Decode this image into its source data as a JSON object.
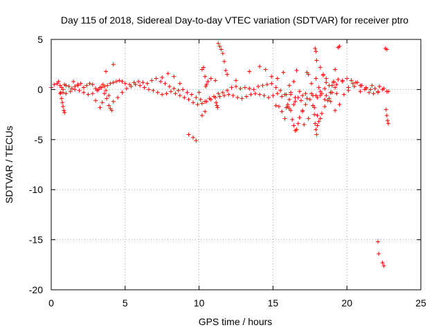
{
  "chart_data": {
    "type": "scatter",
    "title": "Day 115 of 2018, Sidereal Day-to-day VTEC variation (SDTVAR) for receiver ptro",
    "xlabel": "GPS time / hours",
    "ylabel": "SDTVAR / TECUs",
    "xlim": [
      0,
      25
    ],
    "ylim": [
      -20,
      5
    ],
    "xticks": [
      0,
      5,
      10,
      15,
      20,
      25
    ],
    "xtick_labels": [
      "0",
      "5",
      "10",
      "15",
      "20",
      "25"
    ],
    "yticks": [
      5,
      0,
      -5,
      -10,
      -15,
      -20
    ],
    "ytick_labels": [
      "5",
      "0",
      "-5",
      "-10",
      "-15",
      "-20"
    ],
    "grid": true,
    "marker": "+",
    "color": "#ff0000",
    "series": [
      {
        "name": "SDTVAR",
        "x": [
          0.0,
          0.2,
          0.4,
          0.5,
          0.6,
          0.7,
          0.8,
          0.9,
          1.0,
          1.2,
          1.4,
          1.6,
          1.8,
          2.0,
          2.2,
          2.4,
          2.6,
          2.8,
          3.0,
          3.2,
          3.4,
          3.6,
          3.8,
          4.0,
          4.2,
          4.4,
          4.6,
          4.8,
          5.0,
          5.3,
          5.6,
          5.9,
          6.2,
          6.5,
          6.8,
          7.1,
          7.4,
          7.7,
          8.0,
          8.3,
          8.6,
          8.9,
          9.2,
          9.5,
          9.8,
          10.1,
          10.4,
          10.7,
          11.0,
          11.3,
          11.6,
          11.9,
          12.2,
          12.5,
          12.8,
          13.1,
          13.4,
          13.7,
          14.0,
          14.3,
          14.6,
          14.9,
          15.2,
          15.5,
          15.8,
          16.1,
          16.4,
          16.7,
          17.0,
          17.3,
          17.6,
          17.9,
          18.2,
          18.5,
          18.8,
          19.1,
          19.4,
          19.7,
          20.0,
          20.3,
          20.6,
          20.9,
          21.2,
          21.5,
          21.8,
          22.1,
          22.4,
          22.7,
          0.8,
          1.0,
          1.3,
          1.6,
          1.9,
          2.2,
          2.5,
          2.8,
          3.1,
          3.3,
          3.5,
          3.7,
          3.9,
          4.2,
          4.5,
          4.8,
          5.1,
          5.4,
          5.7,
          6.0,
          6.3,
          6.6,
          6.9,
          7.2,
          7.5,
          7.8,
          8.1,
          8.4,
          8.7,
          9.0,
          9.3,
          9.6,
          9.9,
          10.2,
          10.5,
          10.8,
          11.1,
          11.4,
          11.7,
          12.0,
          12.3,
          12.6,
          12.9,
          13.2,
          13.5,
          13.8,
          14.1,
          14.4,
          14.7,
          15.0,
          15.3,
          15.6,
          15.9,
          16.2,
          16.5,
          16.8,
          17.1,
          17.4,
          17.7,
          18.0,
          18.3,
          18.6,
          18.9,
          19.2,
          19.5,
          19.8,
          20.1,
          20.4,
          20.7,
          21.0,
          21.3,
          21.6,
          21.9,
          22.2,
          22.5,
          22.8,
          0.6,
          0.65,
          0.7,
          0.75,
          0.8,
          0.85,
          0.9,
          3.3,
          3.45,
          3.6,
          3.75,
          3.9,
          4.0,
          4.1,
          10.2,
          10.3,
          10.4,
          11.1,
          11.15,
          11.2,
          11.25,
          11.3,
          11.4,
          11.5,
          11.6,
          11.7,
          11.8,
          11.9,
          10.8,
          10.6,
          10.5,
          10.45,
          9.3,
          9.6,
          9.8,
          10.0,
          10.2,
          10.4,
          15.9,
          16.0,
          16.1,
          16.2,
          16.3,
          16.4,
          16.5,
          16.6,
          16.7,
          16.8,
          17.0,
          17.2,
          17.5,
          17.7,
          17.8,
          17.85,
          17.9,
          17.95,
          18.0,
          18.1,
          18.2,
          18.3,
          18.5,
          18.7,
          18.9,
          19.0,
          19.1,
          19.2,
          19.3,
          19.4,
          19.5,
          17.85,
          17.9,
          17.95,
          17.9,
          22.1,
          22.15,
          22.4,
          22.5,
          22.6,
          22.7,
          22.8,
          22.75,
          22.7,
          22.65,
          15.2,
          15.4,
          15.6,
          15.8,
          16.0,
          16.2,
          16.4,
          16.6,
          16.8,
          17.0,
          17.2,
          17.4,
          17.6,
          17.8,
          18.0,
          18.2,
          18.4,
          18.6,
          18.8,
          19.0,
          3.0,
          3.7,
          4.2,
          1.5,
          1.8,
          7.5,
          7.9,
          8.3,
          8.7,
          12.5,
          13.4,
          14.1,
          14.5,
          14.9,
          15.3,
          15.7,
          16.1,
          16.5,
          16.9,
          17.3,
          17.7,
          18.1,
          18.5,
          18.9,
          19.3,
          19.7,
          20.1,
          20.5,
          20.9,
          21.3,
          21.7,
          22.1,
          18.2,
          18.4,
          18.6,
          19.2
        ],
        "y": [
          0.2,
          0.5,
          0.6,
          0.8,
          0.4,
          0.2,
          0.0,
          0.5,
          0.4,
          0.3,
          0.1,
          0.3,
          0.5,
          0.6,
          0.2,
          0.4,
          0.6,
          0.5,
          0.1,
          0.0,
          0.2,
          0.3,
          0.4,
          0.6,
          0.7,
          0.8,
          0.9,
          0.8,
          0.6,
          0.5,
          0.7,
          0.8,
          0.7,
          0.6,
          0.9,
          1.1,
          0.8,
          0.6,
          0.3,
          0.1,
          -0.1,
          0.0,
          -0.3,
          -0.5,
          -0.8,
          -1.0,
          -1.2,
          -0.9,
          -0.7,
          -0.4,
          -0.3,
          -0.1,
          0.2,
          0.3,
          0.1,
          0.2,
          0.1,
          0.0,
          0.3,
          0.4,
          0.5,
          0.6,
          0.2,
          -0.1,
          -0.5,
          -1.0,
          -1.5,
          -0.8,
          -0.6,
          -0.9,
          -0.4,
          -0.6,
          -0.2,
          0.1,
          0.4,
          0.8,
          1.0,
          0.9,
          1.1,
          0.9,
          0.7,
          0.4,
          0.0,
          -0.3,
          -0.4,
          -0.2,
          0.0,
          -0.2,
          -0.3,
          -0.4,
          -0.2,
          0.0,
          -0.1,
          -0.3,
          -0.5,
          -0.4,
          -0.1,
          0.2,
          0.5,
          -0.1,
          -0.6,
          -1.2,
          -0.8,
          -0.3,
          0.1,
          0.3,
          0.5,
          0.4,
          0.2,
          0.0,
          -0.1,
          -0.3,
          -0.5,
          -0.4,
          -0.2,
          -0.4,
          -0.6,
          -0.8,
          -1.0,
          -1.3,
          -1.5,
          -1.4,
          -1.2,
          -1.0,
          -0.8,
          -0.7,
          -0.6,
          -0.5,
          -0.6,
          -0.8,
          -0.9,
          -0.7,
          -0.5,
          -0.4,
          -0.5,
          -0.6,
          -0.8,
          -0.6,
          -0.4,
          -0.7,
          -0.5,
          -0.3,
          -1.2,
          -2.8,
          -3.5,
          -2.9,
          -1.6,
          -0.8,
          -0.4,
          -0.6,
          -1.2,
          -2.1,
          -1.5,
          -0.5,
          0.2,
          0.6,
          0.7,
          0.4,
          0.2,
          0.0,
          0.1,
          0.3,
          0.1,
          -0.2,
          -0.4,
          -0.3,
          -0.9,
          -1.3,
          -1.7,
          -2.1,
          -2.3,
          -1.8,
          -1.3,
          -0.4,
          -0.9,
          -1.6,
          -1.9,
          -2.1,
          2.0,
          2.2,
          1.3,
          0.9,
          -1.3,
          -1.6,
          -1.8,
          4.6,
          4.3,
          4.0,
          3.6,
          2.8,
          1.9,
          1.5,
          1.1,
          0.8,
          0.5,
          0.3,
          -4.5,
          -4.8,
          -5.1,
          -0.3,
          -2.6,
          -2.2,
          -1.8,
          -1.5,
          -1.9,
          -2.1,
          -3.0,
          -3.6,
          -4.1,
          -4.0,
          -3.4,
          -2.8,
          -2.2,
          -1.5,
          -1.0,
          -0.6,
          -2.5,
          -3.4,
          -4.0,
          -4.5,
          -3.6,
          -3.2,
          -2.9,
          -2.4,
          -1.7,
          -1.1,
          -0.3,
          0.4,
          0.7,
          0.2,
          -0.4,
          4.2,
          4.3,
          4.1,
          3.8,
          2.9,
          1.1,
          -15.2,
          -16.4,
          -17.3,
          -17.6,
          4.1,
          4.0,
          -3.4,
          -3.1,
          -2.6,
          -2.0,
          -1.6,
          -1.7,
          -2.2,
          -2.9,
          -1.7,
          -0.5,
          0.8,
          1.9,
          -0.2,
          -2.1,
          -0.4,
          1.5,
          0.6,
          -1.8,
          -2.6,
          -0.6,
          1.4,
          1.1,
          -0.9,
          -0.3,
          -1.1,
          1.8,
          2.5,
          0.8,
          0.4,
          1.2,
          1.6,
          1.3,
          0.6,
          0.9,
          1.8,
          2.3,
          2.0,
          1.3,
          1.1,
          1.7,
          0.4,
          -0.8,
          -1.1,
          1.7,
          -1.6,
          0.2,
          -1.0,
          -0.3,
          0.5,
          0.8,
          -0.1,
          0.3,
          -0.2,
          0.1,
          0.4,
          -0.3,
          2.2,
          1.5,
          0.7,
          2.0
        ]
      }
    ]
  }
}
